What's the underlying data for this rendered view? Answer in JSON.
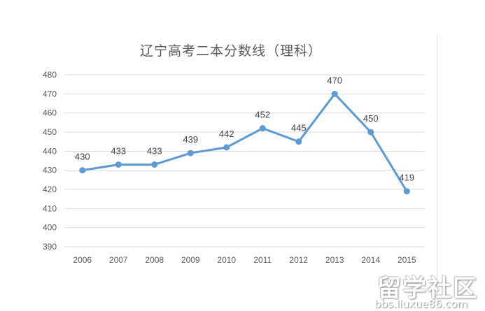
{
  "chart_data": {
    "type": "line",
    "title": "辽宁高考二本分数线（理科）",
    "categories": [
      "2006",
      "2007",
      "2008",
      "2009",
      "2010",
      "2011",
      "2012",
      "2013",
      "2014",
      "2015"
    ],
    "series": [
      {
        "name": "二本分数线（理科）",
        "values": [
          430,
          433,
          433,
          439,
          442,
          452,
          445,
          470,
          450,
          419
        ],
        "color": "#5b9bd5"
      }
    ],
    "xlabel": "",
    "ylabel": "",
    "ylim": [
      390,
      480
    ],
    "yticks": [
      390,
      400,
      410,
      420,
      430,
      440,
      450,
      460,
      470,
      480
    ],
    "grid": true,
    "legend": "none",
    "data_labels": true
  },
  "colors": {
    "line": "#5b9bd5",
    "grid": "#d9d9d9",
    "axis_text": "#595959",
    "title": "#595959"
  },
  "watermark": {
    "main": "留学社区",
    "url": "bbs.liuxue86.com"
  }
}
